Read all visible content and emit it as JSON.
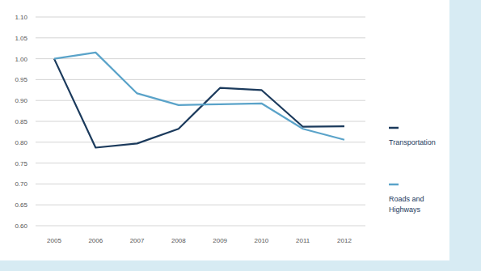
{
  "chart_data": {
    "type": "line",
    "categories": [
      "2005",
      "2006",
      "2007",
      "2008",
      "2009",
      "2010",
      "2011",
      "2012"
    ],
    "series": [
      {
        "name": "Transportation",
        "color": "#1b3a5c",
        "values": [
          1.0,
          0.787,
          0.797,
          0.832,
          0.93,
          0.925,
          0.837,
          0.838
        ]
      },
      {
        "name": "Roads and Highways",
        "color": "#5aa3c9",
        "values": [
          1.0,
          1.015,
          0.917,
          0.889,
          0.891,
          0.893,
          0.832,
          0.806
        ]
      }
    ],
    "ylim": [
      0.6,
      1.1
    ],
    "yticks": [
      {
        "value": 0.6,
        "label": "0.60"
      },
      {
        "value": 0.65,
        "label": "0.65"
      },
      {
        "value": 0.7,
        "label": "0.70"
      },
      {
        "value": 0.75,
        "label": "0.75"
      },
      {
        "value": 0.8,
        "label": "0.80"
      },
      {
        "value": 0.85,
        "label": "0.85"
      },
      {
        "value": 0.9,
        "label": "0.90"
      },
      {
        "value": 0.95,
        "label": "0.95"
      },
      {
        "value": 1.0,
        "label": "1.00"
      },
      {
        "value": 1.05,
        "label": "1.05"
      },
      {
        "value": 1.1,
        "label": "1.10"
      }
    ],
    "grid": true,
    "legend": "right"
  }
}
